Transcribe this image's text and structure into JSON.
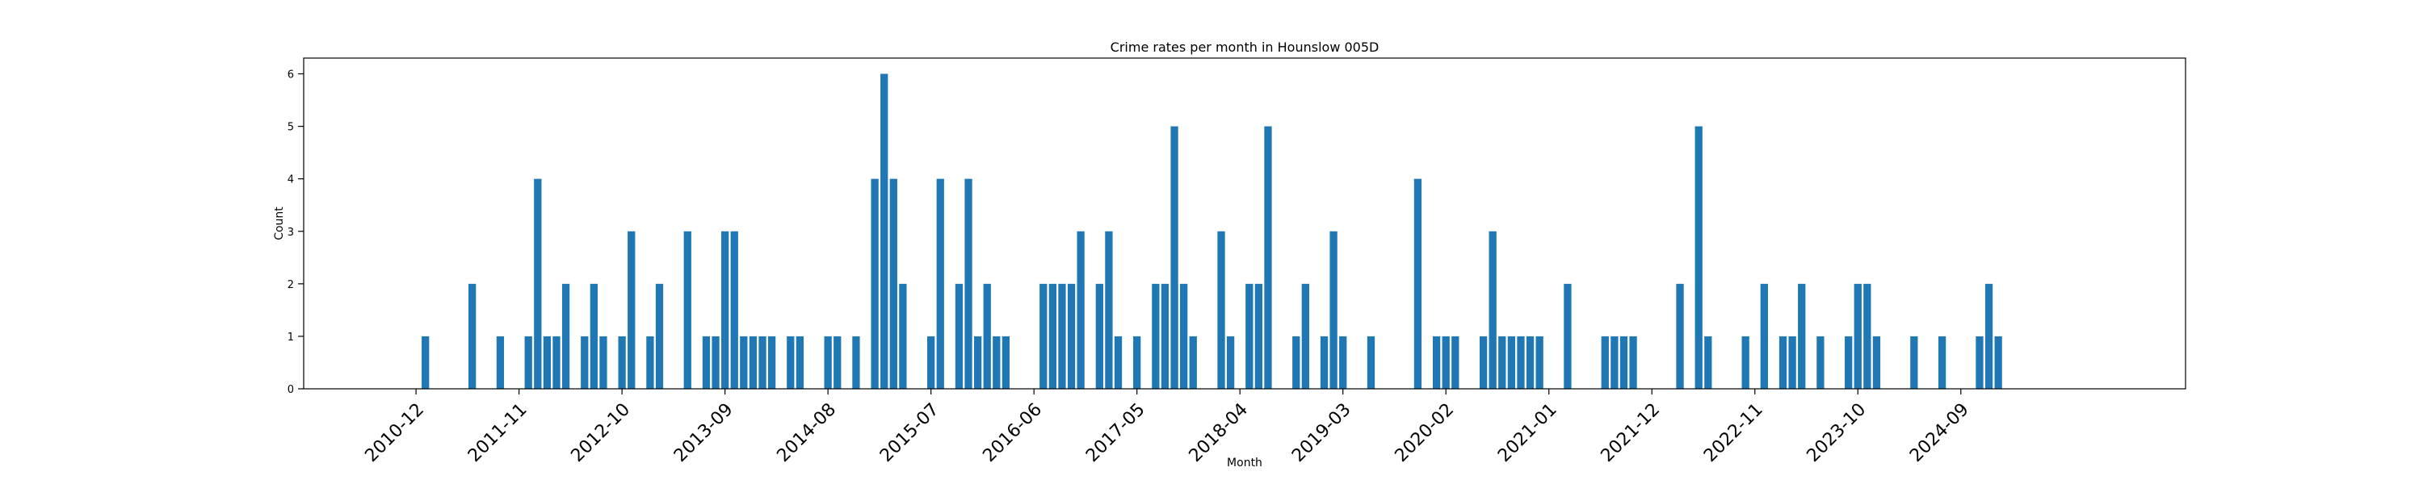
{
  "chart_data": {
    "type": "bar",
    "title": "Crime rates per month in Hounslow 005D",
    "xlabel": "Month",
    "ylabel": "Count",
    "ylim": [
      0,
      6.3
    ],
    "yticks": [
      0,
      1,
      2,
      3,
      4,
      5,
      6
    ],
    "xlim": [
      "2009-12",
      "2026-09"
    ],
    "xticks": [
      "2010-12",
      "2011-11",
      "2012-10",
      "2013-09",
      "2014-08",
      "2015-07",
      "2016-06",
      "2017-05",
      "2018-04",
      "2019-03",
      "2020-02",
      "2021-01",
      "2021-12",
      "2022-11",
      "2023-10",
      "2024-09"
    ],
    "grid": false,
    "color": "#1f77b4",
    "months": [
      "2011-01",
      "2011-06",
      "2011-09",
      "2011-12",
      "2012-01",
      "2012-02",
      "2012-03",
      "2012-04",
      "2012-06",
      "2012-07",
      "2012-08",
      "2012-10",
      "2012-11",
      "2013-01",
      "2013-02",
      "2013-05",
      "2013-07",
      "2013-08",
      "2013-09",
      "2013-10",
      "2013-11",
      "2013-12",
      "2014-01",
      "2014-02",
      "2014-04",
      "2014-05",
      "2014-08",
      "2014-09",
      "2014-11",
      "2015-01",
      "2015-02",
      "2015-03",
      "2015-04",
      "2015-07",
      "2015-08",
      "2015-10",
      "2015-11",
      "2015-12",
      "2016-01",
      "2016-02",
      "2016-03",
      "2016-07",
      "2016-08",
      "2016-09",
      "2016-10",
      "2016-11",
      "2017-01",
      "2017-02",
      "2017-03",
      "2017-05",
      "2017-07",
      "2017-08",
      "2017-09",
      "2017-10",
      "2017-11",
      "2018-02",
      "2018-03",
      "2018-05",
      "2018-06",
      "2018-07",
      "2018-10",
      "2018-11",
      "2019-01",
      "2019-02",
      "2019-03",
      "2019-06",
      "2019-11",
      "2020-01",
      "2020-02",
      "2020-03",
      "2020-06",
      "2020-07",
      "2020-08",
      "2020-09",
      "2020-10",
      "2020-11",
      "2020-12",
      "2021-03",
      "2021-07",
      "2021-08",
      "2021-09",
      "2021-10",
      "2022-03",
      "2022-05",
      "2022-06",
      "2022-10",
      "2022-12",
      "2023-02",
      "2023-03",
      "2023-04",
      "2023-06",
      "2023-09",
      "2023-10",
      "2023-11",
      "2023-12",
      "2024-04",
      "2024-07",
      "2024-11",
      "2024-12",
      "2025-01"
    ],
    "values": [
      1,
      2,
      1,
      1,
      4,
      1,
      1,
      2,
      1,
      2,
      1,
      1,
      3,
      1,
      2,
      3,
      1,
      1,
      3,
      3,
      1,
      1,
      1,
      1,
      1,
      1,
      1,
      1,
      1,
      4,
      6,
      4,
      2,
      1,
      4,
      2,
      4,
      1,
      2,
      1,
      1,
      2,
      2,
      2,
      2,
      3,
      2,
      3,
      1,
      1,
      2,
      2,
      5,
      2,
      1,
      3,
      1,
      2,
      2,
      5,
      1,
      2,
      1,
      3,
      1,
      1,
      4,
      1,
      1,
      1,
      1,
      3,
      1,
      1,
      1,
      1,
      1,
      2,
      1,
      1,
      1,
      1,
      2,
      5,
      1,
      1,
      2,
      1,
      1,
      2,
      1,
      1,
      2,
      2,
      1,
      1,
      1,
      1,
      2,
      1
    ]
  }
}
